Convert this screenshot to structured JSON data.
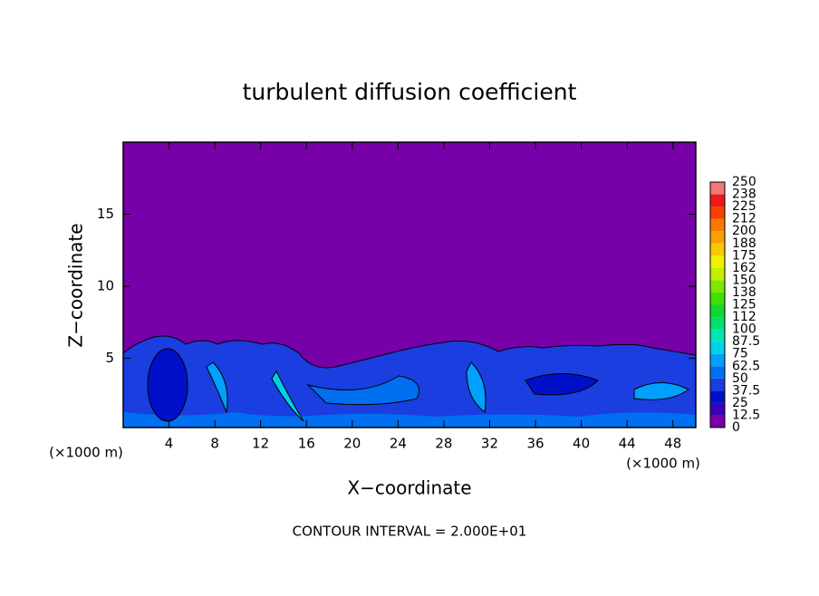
{
  "chart_data": {
    "type": "contour",
    "title": "turbulent diffusion coefficient",
    "x_label": "X−coordinate",
    "y_label": "Z−coordinate",
    "x_unit": "(×1000 m)",
    "x_unit_right": "(×1000 m)",
    "annotation": "CONTOUR INTERVAL = 2.000E+01",
    "xlim": [
      0,
      50
    ],
    "xticks": [
      4,
      8,
      12,
      16,
      20,
      24,
      28,
      32,
      36,
      40,
      44,
      48
    ],
    "ylim": [
      0.2,
      20
    ],
    "yticks": [
      5,
      10,
      15
    ],
    "colorbar": {
      "levels": [
        0,
        12.5,
        25,
        37.5,
        50,
        62.5,
        75,
        87.5,
        100,
        112,
        125,
        138,
        150,
        162,
        175,
        188,
        200,
        212,
        225,
        238,
        250
      ],
      "colors": [
        "#7800a8",
        "#3a00b8",
        "#0010c8",
        "#1a3ee0",
        "#0070f0",
        "#00a0ff",
        "#00d0e8",
        "#00e8b0",
        "#00e070",
        "#10d830",
        "#40e000",
        "#80e800",
        "#c0f000",
        "#f0f000",
        "#f8c800",
        "#f8a000",
        "#f87800",
        "#f84000",
        "#f01818",
        "#f07878"
      ]
    }
  }
}
